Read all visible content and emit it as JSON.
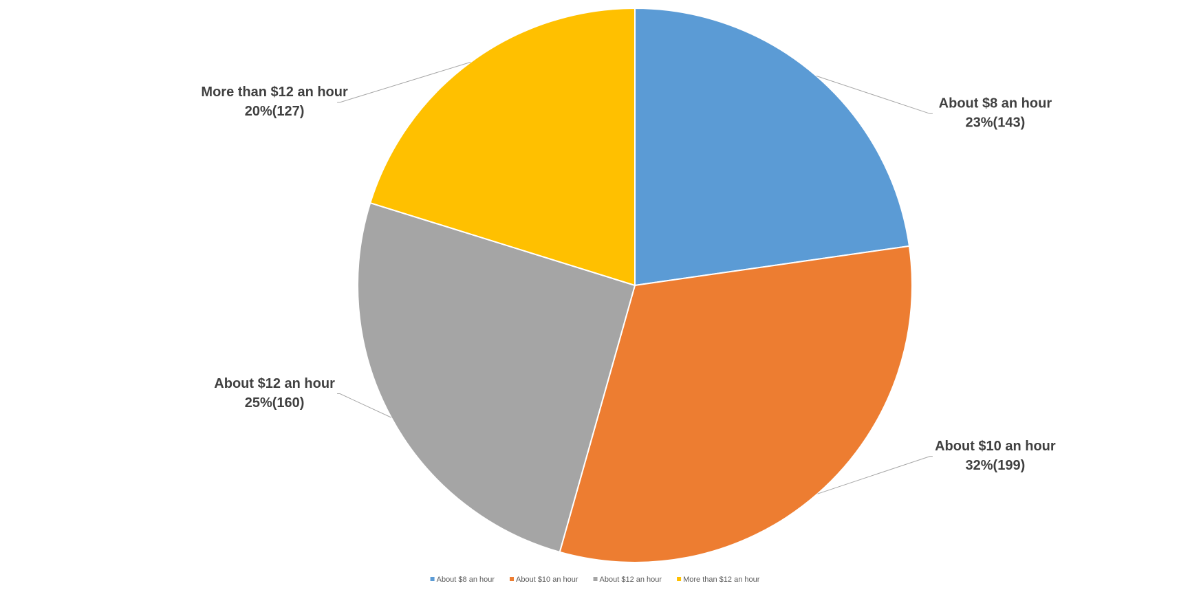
{
  "chart_data": {
    "type": "pie",
    "categories": [
      "About $8 an hour",
      "About $10 an hour",
      "About $12 an hour",
      "More than $12 an hour"
    ],
    "values": [
      143,
      199,
      160,
      127
    ],
    "value_labels": [
      "23%(143)",
      "32%(199)",
      "25%(160)",
      "20%(127)"
    ],
    "colors": [
      "#5b9bd5",
      "#ed7d31",
      "#a5a5a5",
      "#ffc000"
    ],
    "legend": "bottom"
  }
}
